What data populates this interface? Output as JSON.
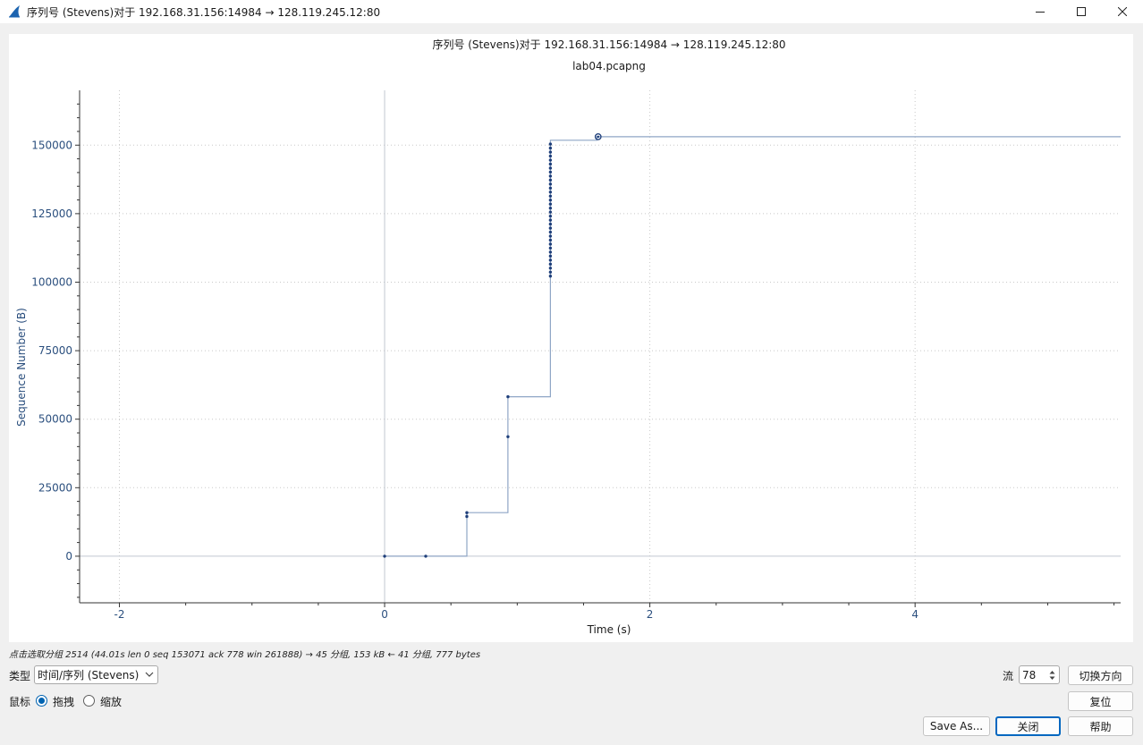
{
  "window": {
    "title": "序列号 (Stevens)对于 192.168.31.156:14984 → 128.119.245.12:80",
    "icon": "wireshark-shark-fin-icon",
    "controls": [
      "minimize-icon",
      "maximize-icon",
      "close-icon"
    ]
  },
  "plot": {
    "title": "序列号 (Stevens)对于 192.168.31.156:14984 → 128.119.245.12:80",
    "subtitle": "lab04.pcapng"
  },
  "chart_data": {
    "type": "line",
    "style": "step",
    "title": "序列号 (Stevens)对于 192.168.31.156:14984 → 128.119.245.12:80",
    "subtitle": "lab04.pcapng",
    "xlabel": "Time (s)",
    "ylabel": "Sequence Number (B)",
    "xlim": [
      -2.3,
      5.55
    ],
    "ylim": [
      -17000,
      170000
    ],
    "x_ticks": [
      -2,
      0,
      2,
      4
    ],
    "y_ticks": [
      0,
      25000,
      50000,
      75000,
      100000,
      125000,
      150000
    ],
    "grid": true,
    "legend": "none",
    "colors": {
      "line": "#8fa6c6",
      "points": "#1f3f7a",
      "axis_text": "#2b4f7e",
      "grid": "#c8c8c8"
    },
    "step_path": [
      [
        0.0,
        0
      ],
      [
        0.62,
        0
      ],
      [
        0.62,
        15900
      ],
      [
        0.93,
        15900
      ],
      [
        0.93,
        58200
      ],
      [
        1.25,
        58200
      ],
      [
        1.25,
        151800
      ],
      [
        1.6,
        151800
      ],
      [
        1.6,
        153071
      ],
      [
        5.55,
        153071
      ]
    ],
    "points": {
      "x": [
        0.0,
        0.31,
        0.62,
        0.62,
        0.93,
        0.93,
        1.25,
        1.25,
        1.25,
        1.25,
        1.25,
        1.25,
        1.25,
        1.25,
        1.25,
        1.25,
        1.25,
        1.25,
        1.25,
        1.25,
        1.25,
        1.25,
        1.25,
        1.25,
        1.25,
        1.25,
        1.25,
        1.25,
        1.25,
        1.25,
        1.25,
        1.25,
        1.25,
        1.25,
        1.25,
        1.25,
        1.25,
        1.25,
        1.25,
        1.25
      ],
      "y": [
        0,
        0,
        14500,
        15900,
        43600,
        58200,
        102200,
        103660,
        105120,
        106580,
        108040,
        109500,
        110960,
        112420,
        113880,
        115340,
        116800,
        118260,
        119720,
        121180,
        122640,
        124100,
        125560,
        127020,
        128480,
        129940,
        131400,
        132860,
        134320,
        135780,
        137240,
        138700,
        140160,
        141620,
        143080,
        144540,
        146000,
        147460,
        148920,
        150380
      ]
    },
    "selected_point": {
      "x": 1.61,
      "y": 153071
    }
  },
  "status": {
    "text": "点击选取分组 2514 (44.01s len 0 seq 153071 ack 778 win 261888) → 45 分组, 153 kB ← 41 分组, 777 bytes"
  },
  "controls": {
    "type_label": "类型",
    "type_value": "时间/序列 (Stevens)",
    "mouse_label": "鼠标",
    "drag_label": "拖拽",
    "zoom_label": "缩放",
    "mouse_mode": "拖拽",
    "stream_label": "流",
    "stream_value": "78",
    "switch_direction": "切换方向",
    "reset": "复位",
    "save_as": "Save As...",
    "close": "关闭",
    "help": "帮助"
  }
}
